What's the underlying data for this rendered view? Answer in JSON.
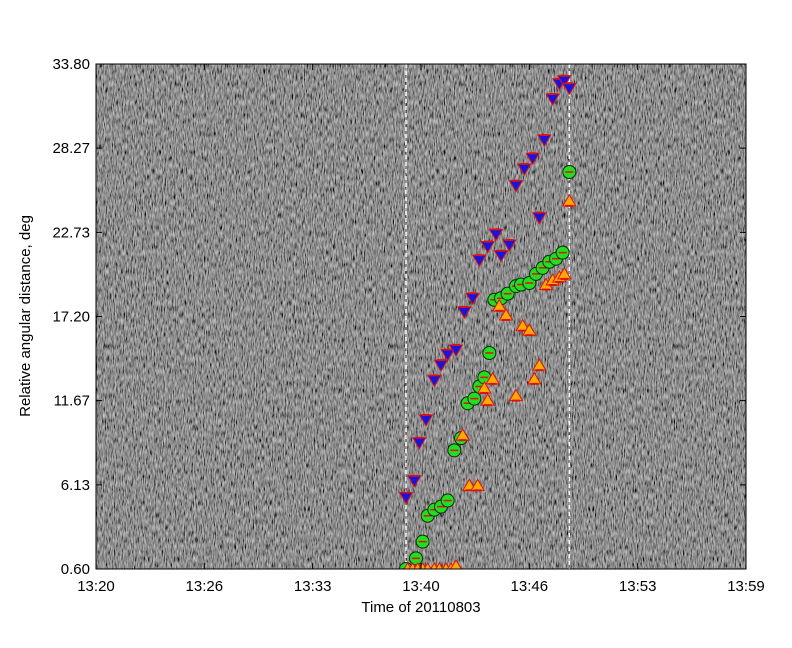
{
  "chart_data": {
    "type": "scatter",
    "xlabel": "Time of 20110803",
    "ylabel": "Relative angular distance, deg",
    "x_tick_labels": [
      "13:20",
      "13:26",
      "13:33",
      "13:40",
      "13:46",
      "13:53",
      "13:59"
    ],
    "x_ticks_minutes": [
      0,
      6.5,
      13,
      19.5,
      26,
      32.5,
      39
    ],
    "x_range_minutes": [
      0,
      39
    ],
    "y_tick_labels": [
      "0.60",
      "6.13",
      "11.67",
      "17.20",
      "22.73",
      "28.27",
      "33.80"
    ],
    "y_ticks": [
      0.6,
      6.13,
      11.67,
      17.2,
      22.73,
      28.27,
      33.8
    ],
    "ylim": [
      0.6,
      33.8
    ],
    "background": "grayscale noise image (time-distance map)",
    "vertical_markers_minutes": [
      18.6,
      28.4
    ],
    "marker_line_color": "#ffffff",
    "grid": false,
    "legend": "none",
    "series": [
      {
        "marker": "down-triangle",
        "fill_color": "#1515e0",
        "edge_color": "#e01010",
        "x": [
          18.6,
          19.1,
          19.4,
          19.8,
          20.3,
          20.7,
          21.1,
          21.6,
          22.1,
          22.6,
          23.0,
          23.5,
          24.0,
          24.3,
          24.8,
          25.2,
          25.7,
          26.2,
          26.6,
          26.9,
          27.4,
          27.8,
          28.1,
          28.4
        ],
        "y": [
          5.3,
          6.4,
          8.9,
          10.4,
          13.0,
          14.0,
          14.7,
          15.0,
          17.5,
          18.4,
          20.9,
          21.8,
          22.6,
          21.2,
          21.9,
          25.8,
          26.9,
          27.6,
          23.7,
          28.8,
          31.5,
          32.5,
          32.7,
          32.2
        ]
      },
      {
        "marker": "circle",
        "fill_color": "#22dd22",
        "edge_color": "#e01010",
        "x": [
          18.6,
          19.2,
          19.6,
          19.9,
          20.3,
          20.7,
          21.1,
          21.5,
          21.9,
          22.3,
          22.7,
          23.0,
          23.3,
          23.6,
          23.9,
          24.3,
          24.7,
          25.2,
          25.5,
          26.0,
          26.4,
          26.8,
          27.2,
          27.6,
          28.0,
          28.4
        ],
        "y": [
          0.6,
          1.3,
          2.4,
          4.1,
          4.5,
          4.7,
          5.1,
          8.4,
          9.2,
          11.5,
          11.8,
          12.6,
          13.2,
          14.8,
          18.3,
          18.4,
          18.7,
          19.2,
          19.3,
          19.4,
          20.0,
          20.4,
          20.8,
          21.0,
          21.4,
          26.7
        ]
      },
      {
        "marker": "up-triangle",
        "fill_color": "#ffaa00",
        "edge_color": "#e01010",
        "x": [
          18.7,
          19.0,
          19.3,
          19.6,
          19.9,
          20.3,
          20.6,
          21.0,
          21.3,
          21.6,
          22.0,
          22.4,
          22.9,
          23.3,
          23.5,
          23.8,
          24.2,
          24.6,
          25.2,
          25.6,
          26.0,
          26.3,
          26.6,
          27.0,
          27.4,
          27.8,
          28.1,
          28.4
        ],
        "y": [
          0.6,
          0.6,
          0.6,
          0.6,
          0.6,
          0.6,
          0.6,
          0.6,
          0.6,
          0.8,
          9.4,
          6.1,
          6.1,
          12.5,
          11.7,
          13.1,
          17.9,
          17.3,
          12.0,
          16.6,
          16.3,
          13.1,
          14.0,
          19.3,
          19.6,
          19.8,
          20.0,
          24.8
        ]
      }
    ]
  }
}
